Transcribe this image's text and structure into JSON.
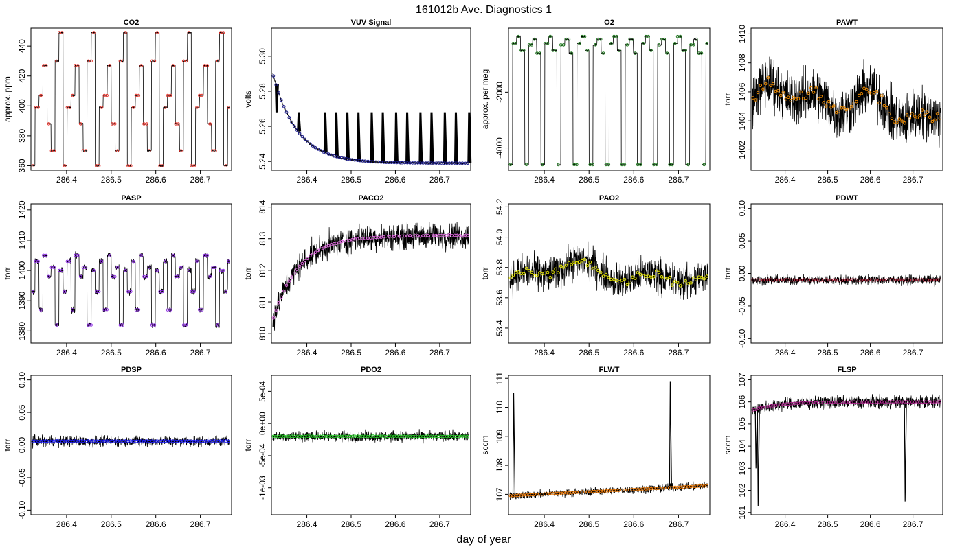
{
  "figure": {
    "title": "161012b   Ave. Diagnostics 1",
    "xlabel": "day of year"
  },
  "chart_data": [
    {
      "id": "co2",
      "type": "line",
      "title": "CO2",
      "ylabel": "approx. ppm",
      "xlim": [
        286.32,
        286.77
      ],
      "ylim": [
        357,
        452
      ],
      "xticks": [
        286.4,
        286.5,
        286.6,
        286.7
      ],
      "xtick_labels": [
        "286.4",
        "286.5",
        "286.6",
        "286.7"
      ],
      "yticks": [
        360,
        380,
        400,
        420,
        440
      ],
      "ytick_labels": [
        "360",
        "380",
        "400",
        "420",
        "440"
      ],
      "point_color": "#e8322a",
      "pattern": "cycle",
      "cycle_levels": [
        360,
        399,
        407,
        427,
        388,
        370,
        430,
        449
      ],
      "cycle_len": 0.072,
      "noise": 0.5
    },
    {
      "id": "vuv",
      "type": "line",
      "title": "VUV Signal",
      "ylabel": "volts",
      "xlim": [
        286.32,
        286.77
      ],
      "ylim": [
        5.235,
        5.316
      ],
      "xticks": [
        286.4,
        286.5,
        286.6,
        286.7
      ],
      "xtick_labels": [
        "286.4",
        "286.5",
        "286.6",
        "286.7"
      ],
      "yticks": [
        5.24,
        5.26,
        5.28,
        5.3
      ],
      "ytick_labels": [
        "5.24",
        "5.26",
        "5.28",
        "5.30"
      ],
      "point_color": "#1a1a8c",
      "pattern": "decay",
      "start": 5.293,
      "end": 5.239,
      "tau": 0.055,
      "noise": 0.0008,
      "spike_top": 5.268,
      "spike_x": [
        286.33,
        286.38,
        286.44,
        286.465,
        286.49,
        286.515,
        286.545,
        286.57,
        286.6,
        286.625,
        286.655,
        286.68,
        286.71,
        286.735,
        286.765
      ]
    },
    {
      "id": "o2",
      "type": "line",
      "title": "O2",
      "ylabel": "approx. per meg",
      "xlim": [
        286.32,
        286.77
      ],
      "ylim": [
        -4800,
        300
      ],
      "xticks": [
        286.4,
        286.5,
        286.6,
        286.7
      ],
      "xtick_labels": [
        "286.4",
        "286.5",
        "286.6",
        "286.7"
      ],
      "yticks": [
        -4000,
        -2000
      ],
      "ytick_labels": [
        "-4000",
        "-2000"
      ],
      "point_color": "#1f7a1f",
      "pattern": "cycle",
      "cycle_levels": [
        -4600,
        -250,
        0,
        -500,
        -4600,
        -300,
        -100,
        -600
      ],
      "cycle_len": 0.072,
      "noise": 30
    },
    {
      "id": "pawt",
      "type": "line",
      "title": "PAWT",
      "ylabel": "torr",
      "xlim": [
        286.32,
        286.77
      ],
      "ylim": [
        1400.6,
        1410.4
      ],
      "xticks": [
        286.4,
        286.5,
        286.6,
        286.7
      ],
      "xtick_labels": [
        "286.4",
        "286.5",
        "286.6",
        "286.7"
      ],
      "yticks": [
        1402,
        1404,
        1406,
        1408,
        1410
      ],
      "ytick_labels": [
        "1402",
        "1404",
        "1406",
        "1408",
        "1410"
      ],
      "point_color": "#f08c00",
      "pattern": "wander",
      "base": 1405.2,
      "amp": 1.3,
      "noise": 2.2
    },
    {
      "id": "pasp",
      "type": "line",
      "title": "PASP",
      "ylabel": "torr",
      "xlim": [
        286.32,
        286.77
      ],
      "ylim": [
        1376,
        1422
      ],
      "xticks": [
        286.4,
        286.5,
        286.6,
        286.7
      ],
      "xtick_labels": [
        "286.4",
        "286.5",
        "286.6",
        "286.7"
      ],
      "yticks": [
        1380,
        1390,
        1400,
        1410,
        1420
      ],
      "ytick_labels": [
        "1380",
        "1390",
        "1400",
        "1410",
        "1420"
      ],
      "point_color": "#8a2be2",
      "pattern": "cycle",
      "cycle_levels": [
        1393,
        1403,
        1387,
        1405,
        1398,
        1401,
        1382,
        1400
      ],
      "cycle_len": 0.072,
      "noise": 1.2
    },
    {
      "id": "paco2",
      "type": "line",
      "title": "PACO2",
      "ylabel": "torr",
      "xlim": [
        286.32,
        286.77
      ],
      "ylim": [
        809.7,
        814.1
      ],
      "xticks": [
        286.4,
        286.5,
        286.6,
        286.7
      ],
      "xtick_labels": [
        "286.4",
        "286.5",
        "286.6",
        "286.7"
      ],
      "yticks": [
        810,
        811,
        812,
        813,
        814
      ],
      "ytick_labels": [
        "810",
        "811",
        "812",
        "813",
        "814"
      ],
      "point_color": "#dd66dd",
      "pattern": "rise",
      "start": 810.3,
      "end": 813.1,
      "noise": 0.5
    },
    {
      "id": "pao2",
      "type": "line",
      "title": "PAO2",
      "ylabel": "torr",
      "xlim": [
        286.32,
        286.77
      ],
      "ylim": [
        53.3,
        54.22
      ],
      "xticks": [
        286.4,
        286.5,
        286.6,
        286.7
      ],
      "xtick_labels": [
        "286.4",
        "286.5",
        "286.6",
        "286.7"
      ],
      "yticks": [
        53.4,
        53.6,
        53.8,
        54.0,
        54.2
      ],
      "ytick_labels": [
        "53.4",
        "53.6",
        "53.8",
        "54.0",
        "54.2"
      ],
      "point_color": "#e6e600",
      "pattern": "hump",
      "base": 53.73,
      "amp": 0.1,
      "noise": 0.14
    },
    {
      "id": "pdwt",
      "type": "line",
      "title": "PDWT",
      "ylabel": "torr",
      "xlim": [
        286.32,
        286.77
      ],
      "ylim": [
        -0.107,
        0.107
      ],
      "xticks": [
        286.4,
        286.5,
        286.6,
        286.7
      ],
      "xtick_labels": [
        "286.4",
        "286.5",
        "286.6",
        "286.7"
      ],
      "yticks": [
        -0.1,
        -0.05,
        0.0,
        0.05,
        0.1
      ],
      "ytick_labels": [
        "-0.10",
        "-0.05",
        "0.00",
        "0.05",
        "0.10"
      ],
      "point_color": "#c41e3a",
      "pattern": "flat",
      "base": -0.01,
      "noise": 0.009
    },
    {
      "id": "pdsp",
      "type": "line",
      "title": "PDSP",
      "ylabel": "torr",
      "xlim": [
        286.32,
        286.77
      ],
      "ylim": [
        -0.107,
        0.107
      ],
      "xticks": [
        286.4,
        286.5,
        286.6,
        286.7
      ],
      "xtick_labels": [
        "286.4",
        "286.5",
        "286.6",
        "286.7"
      ],
      "yticks": [
        -0.1,
        -0.05,
        0.0,
        0.05,
        0.1
      ],
      "ytick_labels": [
        "-0.10",
        "-0.05",
        "0.00",
        "0.05",
        "0.10"
      ],
      "point_color": "#1a1aff",
      "pattern": "flat",
      "base": 0.006,
      "noise": 0.01
    },
    {
      "id": "pdo2",
      "type": "line",
      "title": "PDO2",
      "ylabel": "torr",
      "xlim": [
        286.32,
        286.77
      ],
      "ylim": [
        -0.00142,
        0.00075
      ],
      "xticks": [
        286.4,
        286.5,
        286.6,
        286.7
      ],
      "xtick_labels": [
        "286.4",
        "286.5",
        "286.6",
        "286.7"
      ],
      "yticks": [
        -0.001,
        -0.0005,
        0.0,
        0.0005
      ],
      "ytick_labels": [
        "-1e-03",
        "-5e-04",
        "0e+00",
        "5e-04"
      ],
      "point_color": "#22cc22",
      "pattern": "flat",
      "base": -0.0002,
      "noise": 0.0001
    },
    {
      "id": "flwt",
      "type": "line",
      "title": "FLWT",
      "ylabel": "sccm",
      "xlim": [
        286.32,
        286.77
      ],
      "ylim": [
        106.3,
        111.1
      ],
      "xticks": [
        286.4,
        286.5,
        286.6,
        286.7
      ],
      "xtick_labels": [
        "286.4",
        "286.5",
        "286.6",
        "286.7"
      ],
      "yticks": [
        107,
        108,
        109,
        110,
        111
      ],
      "ytick_labels": [
        "107",
        "108",
        "109",
        "110",
        "111"
      ],
      "point_color": "#f07800",
      "pattern": "flat",
      "base": 106.95,
      "slope": 0.35,
      "noise": 0.16,
      "spike_x": [
        286.33,
        286.68
      ],
      "spike_top": [
        110.5,
        110.9
      ]
    },
    {
      "id": "flsp",
      "type": "line",
      "title": "FLSP",
      "ylabel": "sccm",
      "xlim": [
        286.32,
        286.77
      ],
      "ylim": [
        100.9,
        107.2
      ],
      "xticks": [
        286.4,
        286.5,
        286.6,
        286.7
      ],
      "xtick_labels": [
        "286.4",
        "286.5",
        "286.6",
        "286.7"
      ],
      "yticks": [
        101,
        102,
        103,
        104,
        105,
        106,
        107
      ],
      "ytick_labels": [
        "101",
        "102",
        "103",
        "104",
        "105",
        "106",
        "107"
      ],
      "point_color": "#b0208e",
      "pattern": "rise",
      "start": 105.6,
      "end": 106.0,
      "noise": 0.35,
      "spike_x": [
        286.33,
        286.335,
        286.68
      ],
      "spike_bottom": [
        103.0,
        101.3,
        101.5
      ]
    }
  ]
}
